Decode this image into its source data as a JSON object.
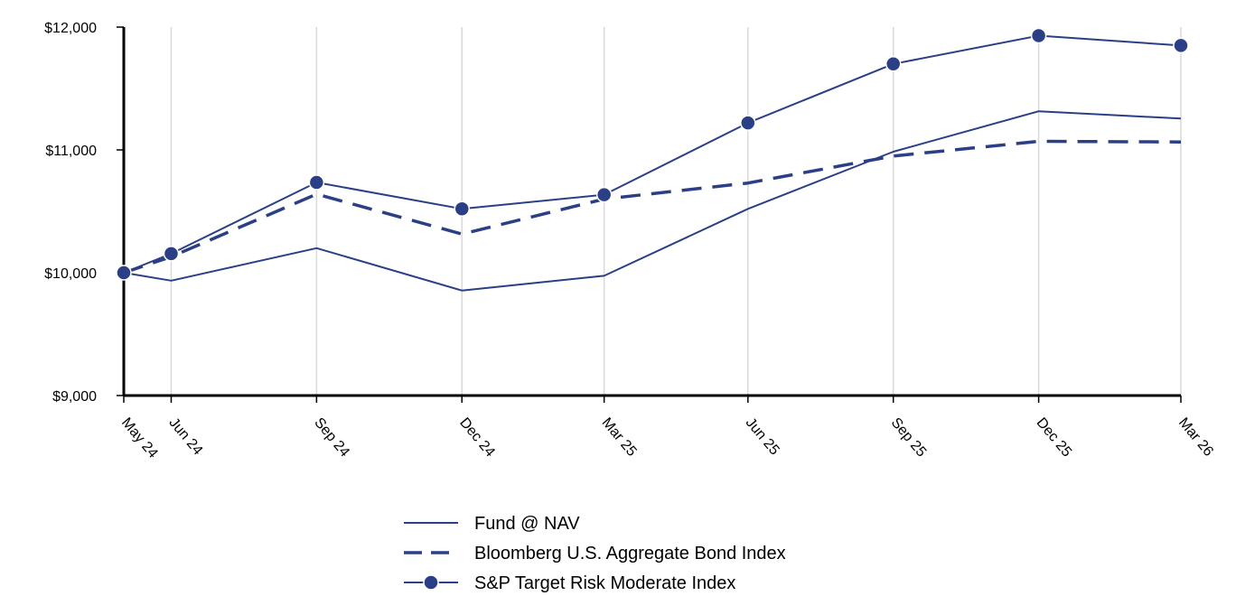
{
  "chart_data": {
    "type": "line",
    "title": "",
    "xlabel": "",
    "ylabel": "",
    "x": [
      "May 24",
      "Jun 24",
      "Sep 24",
      "Dec 24",
      "Mar 25",
      "Jun 25",
      "Sep 25",
      "Dec 25",
      "Mar 26"
    ],
    "x_dates": [
      "2024-05-31",
      "2024-06-30",
      "2024-09-30",
      "2024-12-31",
      "2025-03-31",
      "2025-06-30",
      "2025-09-30",
      "2025-12-31",
      "2026-03-31"
    ],
    "ylim": [
      9000,
      12000
    ],
    "yticks": [
      9000,
      10000,
      11000,
      12000
    ],
    "ytick_labels": [
      "$9,000",
      "$10,000",
      "$11,000",
      "$12,000"
    ],
    "grid": "vertical",
    "legend": "bottom",
    "series": [
      {
        "name": "Fund @ NAV",
        "style": "solid",
        "color": "#2b3f86",
        "values": [
          10000,
          9935,
          10200,
          9855,
          9975,
          10520,
          10985,
          11315,
          11255
        ]
      },
      {
        "name": "Bloomberg U.S. Aggregate Bond Index",
        "style": "dashed",
        "color": "#2b3f86",
        "values": [
          10000,
          10130,
          10640,
          10315,
          10600,
          10730,
          10950,
          11070,
          11065
        ]
      },
      {
        "name": "S&P Target Risk Moderate Index",
        "style": "solid-markers",
        "color": "#2b3f86",
        "values": [
          10000,
          10155,
          10735,
          10520,
          10635,
          11220,
          11700,
          11930,
          11850
        ]
      }
    ]
  }
}
